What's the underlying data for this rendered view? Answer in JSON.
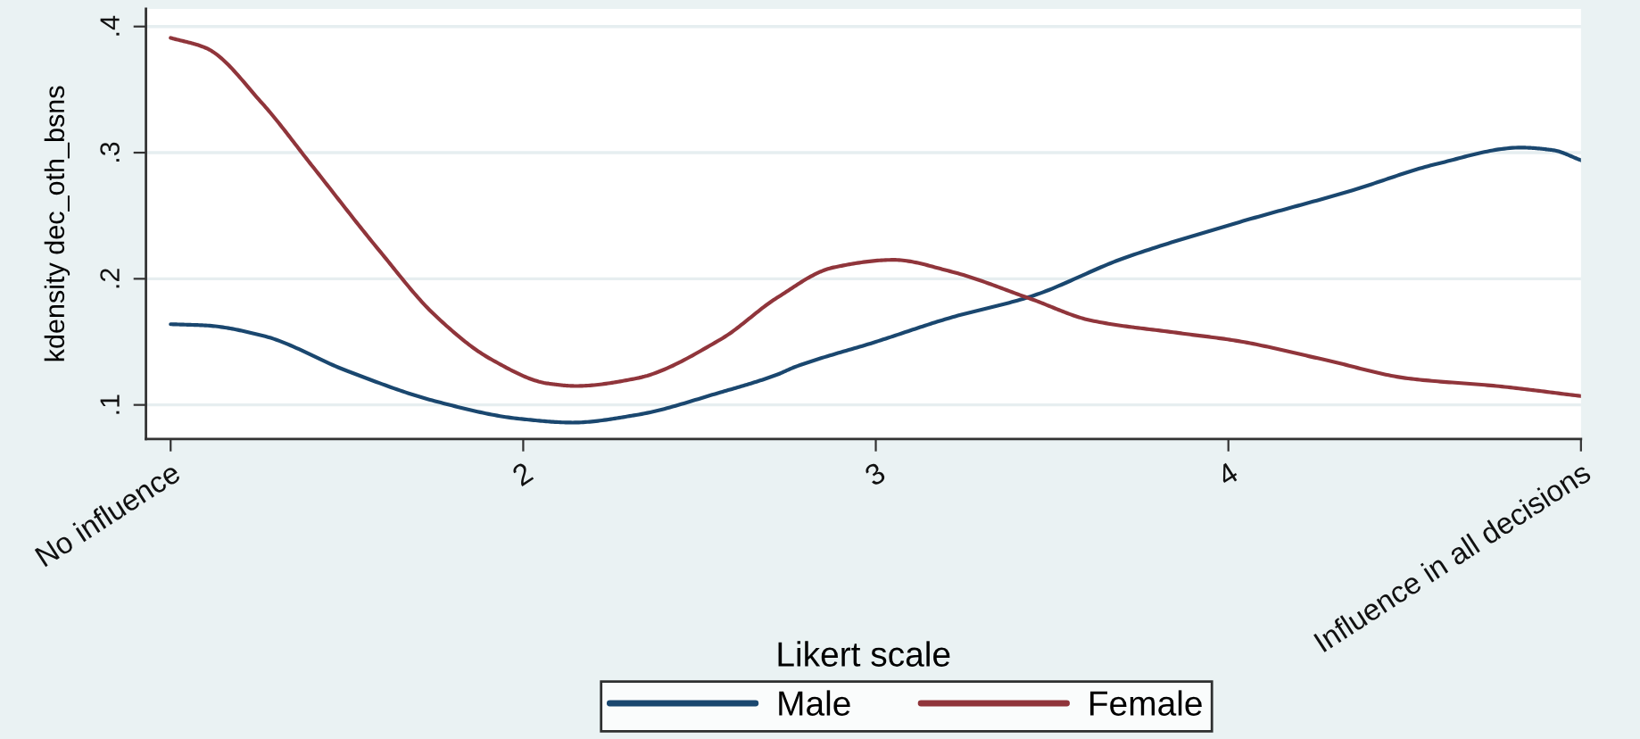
{
  "chart_data": {
    "type": "line",
    "xlabel": "Likert scale",
    "ylabel": "kdensity dec_oth_bsns",
    "xlim": [
      0.93,
      5.0
    ],
    "xticks": [
      {
        "value": 1,
        "label": "No influence"
      },
      2,
      3,
      4,
      {
        "value": 5,
        "label": "Influence in all decisions"
      }
    ],
    "ylim": [
      0.073,
      0.414
    ],
    "yticks": [
      {
        "value": 0.1,
        "label": ".1"
      },
      {
        "value": 0.2,
        "label": ".2"
      },
      {
        "value": 0.3,
        "label": ".3"
      },
      {
        "value": 0.4,
        "label": ".4"
      }
    ],
    "grid": "y",
    "legend": "bottom",
    "line_style": "solid",
    "series": [
      {
        "name": "Male",
        "color": "#1a476f",
        "x": [
          1.0,
          1.1,
          1.26,
          1.5,
          1.75,
          1.99,
          2.14,
          2.32,
          2.56,
          2.72,
          2.77,
          3.0,
          3.21,
          3.44,
          3.7,
          4.02,
          4.35,
          4.59,
          4.83,
          4.92,
          5.0
        ],
        "values": [
          0.164,
          0.163,
          0.155,
          0.127,
          0.103,
          0.089,
          0.086,
          0.092,
          0.11,
          0.124,
          0.13,
          0.15,
          0.169,
          0.186,
          0.216,
          0.244,
          0.27,
          0.291,
          0.304,
          0.302,
          0.294
        ]
      },
      {
        "name": "Female",
        "color": "#90353b",
        "x": [
          1.0,
          1.1,
          1.26,
          1.4,
          1.59,
          1.75,
          1.91,
          2.07,
          2.15,
          2.32,
          2.56,
          2.72,
          2.88,
          3.05,
          3.21,
          3.44,
          3.61,
          3.86,
          4.02,
          4.27,
          4.51,
          4.76,
          5.0
        ],
        "values": [
          0.391,
          0.383,
          0.339,
          0.29,
          0.223,
          0.171,
          0.136,
          0.117,
          0.115,
          0.121,
          0.152,
          0.185,
          0.209,
          0.215,
          0.206,
          0.184,
          0.167,
          0.157,
          0.151,
          0.136,
          0.121,
          0.115,
          0.107
        ]
      }
    ]
  }
}
